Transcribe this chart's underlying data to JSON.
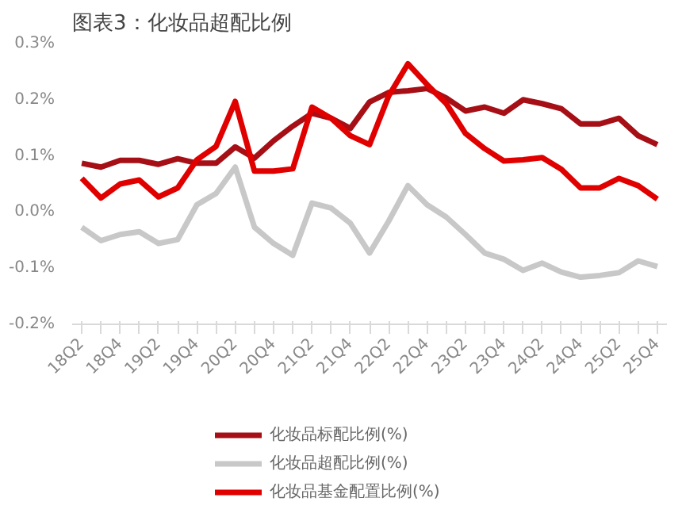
{
  "chart_data": {
    "type": "line",
    "title": "图表3：化妆品超配比例",
    "categories": [
      "18Q2",
      null,
      "18Q4",
      null,
      "19Q2",
      null,
      "19Q4",
      null,
      "20Q2",
      null,
      "20Q4",
      null,
      "21Q2",
      null,
      "21Q4",
      null,
      "22Q2",
      null,
      "22Q4",
      null,
      "23Q2",
      null,
      "23Q4",
      null,
      "24Q2",
      null,
      "24Q4",
      null,
      "25Q2",
      null,
      "25Q4"
    ],
    "series": [
      {
        "name": "化妆品标配比例(%)",
        "color": "#a50f15",
        "values": [
          0.087,
          0.08,
          0.092,
          0.092,
          0.085,
          0.095,
          0.087,
          0.087,
          0.116,
          0.096,
          0.127,
          0.153,
          0.176,
          0.167,
          0.149,
          0.196,
          0.213,
          0.216,
          0.22,
          0.203,
          0.18,
          0.187,
          0.176,
          0.2,
          0.193,
          0.184,
          0.157,
          0.157,
          0.167,
          0.136,
          0.12
        ]
      },
      {
        "name": "化妆品超配比例(%)",
        "color": "#c8c8c8",
        "values": [
          -0.027,
          -0.051,
          -0.04,
          -0.035,
          -0.056,
          -0.049,
          0.013,
          0.033,
          0.08,
          -0.027,
          -0.056,
          -0.077,
          0.016,
          0.007,
          -0.02,
          -0.073,
          -0.016,
          0.047,
          0.013,
          -0.009,
          -0.04,
          -0.073,
          -0.084,
          -0.104,
          -0.091,
          -0.107,
          -0.116,
          -0.113,
          -0.108,
          -0.087,
          -0.097
        ]
      },
      {
        "name": "化妆品基金配置比例(%)",
        "color": "#e00000",
        "values": [
          0.06,
          0.025,
          0.05,
          0.057,
          0.027,
          0.043,
          0.093,
          0.117,
          0.197,
          0.073,
          0.073,
          0.077,
          0.187,
          0.167,
          0.136,
          0.12,
          0.207,
          0.264,
          0.227,
          0.193,
          0.14,
          0.113,
          0.091,
          0.093,
          0.097,
          0.076,
          0.043,
          0.043,
          0.06,
          0.047,
          0.023
        ]
      }
    ],
    "ylim": [
      -0.2,
      0.3
    ],
    "yticks": [
      {
        "value": -0.2,
        "label": "-0.2%"
      },
      {
        "value": -0.1,
        "label": "-0.1%"
      },
      {
        "value": 0,
        "label": "0.0%"
      },
      {
        "value": 0.1,
        "label": "0.1%"
      },
      {
        "value": 0.2,
        "label": "0.2%"
      },
      {
        "value": 0.3,
        "label": "0.3%"
      }
    ],
    "grid": false,
    "legend": "bottom",
    "marker": "none",
    "line_style": "solid"
  }
}
